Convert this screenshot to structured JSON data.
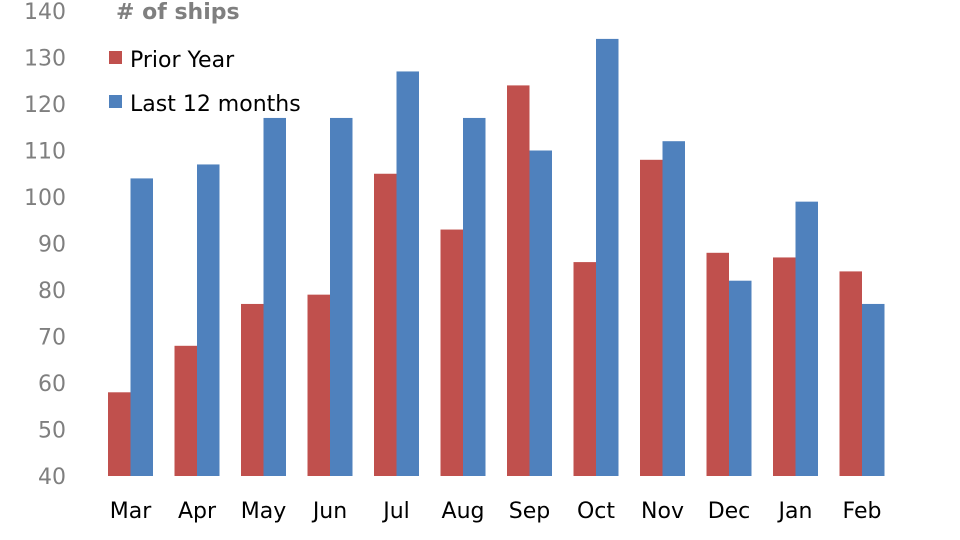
{
  "chart_data": {
    "type": "bar",
    "title": "",
    "xlabel": "",
    "ylabel": "# of ships",
    "ylim": [
      40,
      140
    ],
    "yticks": [
      40,
      50,
      60,
      70,
      80,
      90,
      100,
      110,
      120,
      130,
      140
    ],
    "grid": false,
    "legend_position": "top-left",
    "categories": [
      "Mar",
      "Apr",
      "May",
      "Jun",
      "Jul",
      "Aug",
      "Sep",
      "Oct",
      "Nov",
      "Dec",
      "Jan",
      "Feb"
    ],
    "series": [
      {
        "name": "Prior Year",
        "color": "#c0504d",
        "values": [
          58,
          68,
          77,
          79,
          105,
          93,
          124,
          86,
          108,
          88,
          87,
          84
        ]
      },
      {
        "name": "Last 12 months",
        "color": "#4f81bd",
        "values": [
          104,
          107,
          117,
          117,
          127,
          117,
          110,
          134,
          112,
          82,
          99,
          77
        ]
      }
    ]
  }
}
